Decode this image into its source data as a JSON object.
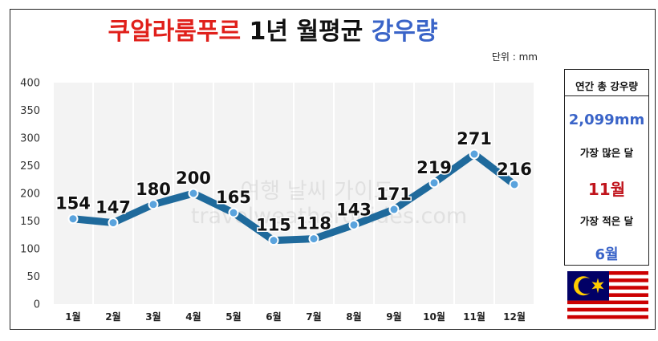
{
  "title": {
    "part1": "쿠알라룸푸르",
    "part2": "1년 월평균",
    "part3": "강우량"
  },
  "unit_label": "단위 : mm",
  "watermark": {
    "line1": "여행 날씨 가이드",
    "line2": "travelweatherguides.com"
  },
  "side_panel": {
    "annual_label": "연간 총 강우량",
    "annual_value": "2,099mm",
    "max_label": "가장 많은 달",
    "max_value": "11월",
    "min_label": "가장 적은 달",
    "min_value": "6월"
  },
  "flag": "malaysia-flag",
  "colors": {
    "line": "#1f6a9c",
    "marker": "#5aa3dd",
    "title_red": "#e0201b",
    "title_blue": "#3a64c8",
    "max_red": "#c0141c"
  },
  "chart_data": {
    "type": "line",
    "categories": [
      "1월",
      "2월",
      "3월",
      "4월",
      "5월",
      "6월",
      "7월",
      "8월",
      "9월",
      "10월",
      "11월",
      "12월"
    ],
    "values": [
      154,
      147,
      180,
      200,
      165,
      115,
      118,
      143,
      171,
      219,
      271,
      216
    ],
    "ylim": [
      0,
      400
    ],
    "yticks": [
      0,
      50,
      100,
      150,
      200,
      250,
      300,
      350,
      400
    ],
    "grid": "vertical",
    "data_labels": true
  }
}
